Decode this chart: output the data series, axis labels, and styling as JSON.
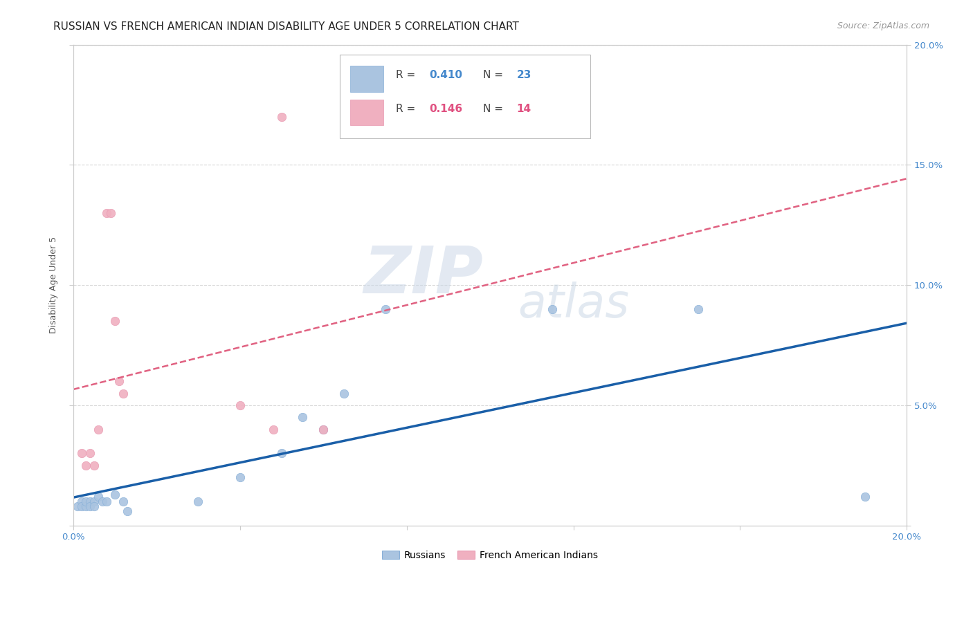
{
  "title": "RUSSIAN VS FRENCH AMERICAN INDIAN DISABILITY AGE UNDER 5 CORRELATION CHART",
  "source": "Source: ZipAtlas.com",
  "ylabel": "Disability Age Under 5",
  "watermark_zip": "ZIP",
  "watermark_atlas": "atlas",
  "xlim": [
    0.0,
    0.2
  ],
  "ylim": [
    0.0,
    0.2
  ],
  "xticks": [
    0.0,
    0.04,
    0.08,
    0.12,
    0.16,
    0.2
  ],
  "yticks": [
    0.0,
    0.05,
    0.1,
    0.15,
    0.2
  ],
  "ytick_labels_right": [
    "",
    "5.0%",
    "10.0%",
    "15.0%",
    "20.0%"
  ],
  "xtick_labels": [
    "0.0%",
    "",
    "",
    "",
    "",
    "20.0%"
  ],
  "russian_color": "#aac4e0",
  "french_color": "#f0b0c0",
  "russian_line_color": "#1a5fa8",
  "french_line_color": "#e06080",
  "russian_points": [
    [
      0.001,
      0.008
    ],
    [
      0.002,
      0.01
    ],
    [
      0.002,
      0.008
    ],
    [
      0.003,
      0.008
    ],
    [
      0.003,
      0.01
    ],
    [
      0.004,
      0.01
    ],
    [
      0.004,
      0.008
    ],
    [
      0.005,
      0.01
    ],
    [
      0.005,
      0.008
    ],
    [
      0.006,
      0.012
    ],
    [
      0.007,
      0.01
    ],
    [
      0.008,
      0.01
    ],
    [
      0.01,
      0.013
    ],
    [
      0.012,
      0.01
    ],
    [
      0.013,
      0.006
    ],
    [
      0.03,
      0.01
    ],
    [
      0.04,
      0.02
    ],
    [
      0.05,
      0.03
    ],
    [
      0.055,
      0.045
    ],
    [
      0.06,
      0.04
    ],
    [
      0.065,
      0.055
    ],
    [
      0.075,
      0.09
    ],
    [
      0.115,
      0.09
    ],
    [
      0.15,
      0.09
    ],
    [
      0.19,
      0.012
    ]
  ],
  "french_points": [
    [
      0.002,
      0.03
    ],
    [
      0.003,
      0.025
    ],
    [
      0.004,
      0.03
    ],
    [
      0.005,
      0.025
    ],
    [
      0.006,
      0.04
    ],
    [
      0.008,
      0.13
    ],
    [
      0.009,
      0.13
    ],
    [
      0.01,
      0.085
    ],
    [
      0.011,
      0.06
    ],
    [
      0.012,
      0.055
    ],
    [
      0.04,
      0.05
    ],
    [
      0.048,
      0.04
    ],
    [
      0.05,
      0.17
    ],
    [
      0.06,
      0.04
    ]
  ],
  "background_color": "#ffffff",
  "grid_color": "#d8d8d8",
  "title_fontsize": 11,
  "label_fontsize": 9,
  "tick_fontsize": 9.5,
  "legend_fontsize": 11,
  "marker_size": 80
}
